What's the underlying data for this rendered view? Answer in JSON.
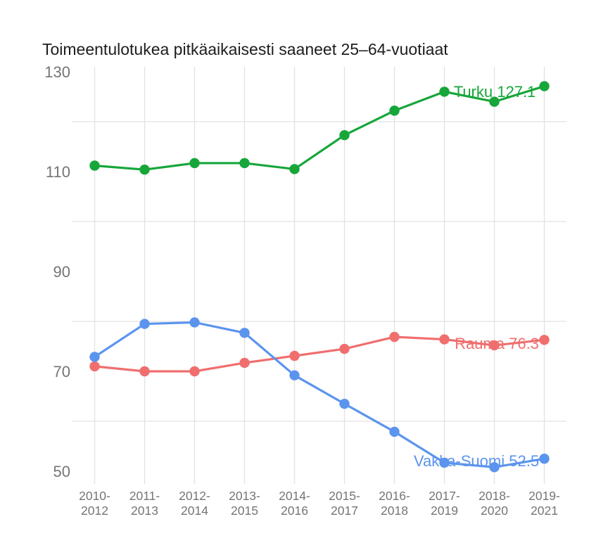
{
  "title": "Toimeentulotukea pitkäaikaisesti saaneet 25–64-vuotiaat",
  "colors": {
    "background": "#ffffff",
    "title_text": "#1d1d1d",
    "axis_text": "#757575",
    "gridline": "#e2e2e2",
    "turku_green": "#17a63a",
    "rauma_red": "#f06e6e",
    "vakka_suomi_blue": "#5b94ee"
  },
  "chart_data": {
    "type": "line",
    "title": "Toimeentulotukea pitkäaikaisesti saaneet 25–64-vuotiaat",
    "xlabel": "",
    "ylabel": "",
    "grid": true,
    "legend_position": "end-of-line-labels",
    "ylim": [
      47,
      131
    ],
    "y_tick_labels": [
      130,
      110,
      90,
      70,
      50
    ],
    "y_gridline_values": [
      120,
      100,
      80,
      60
    ],
    "categories": [
      [
        "2010-",
        "2012"
      ],
      [
        "2011-",
        "2013"
      ],
      [
        "2012-",
        "2014"
      ],
      [
        "2013-",
        "2015"
      ],
      [
        "2014-",
        "2016"
      ],
      [
        "2015-",
        "2017"
      ],
      [
        "2016-",
        "2018"
      ],
      [
        "2017-",
        "2019"
      ],
      [
        "2018-",
        "2020"
      ],
      [
        "2019-",
        "2021"
      ]
    ],
    "series": [
      {
        "name": "Turku",
        "color": "#17a63a",
        "end_label": "Turku 127.1",
        "last_value": 127.1,
        "values": [
          111.2,
          110.4,
          111.7,
          111.7,
          110.5,
          117.3,
          122.2,
          126.0,
          124.0,
          127.1
        ]
      },
      {
        "name": "Rauma",
        "color": "#f06e6e",
        "end_label": "Rauma 76.3",
        "last_value": 76.3,
        "values": [
          71.0,
          70.0,
          70.0,
          71.7,
          73.1,
          74.5,
          76.9,
          76.4,
          75.2,
          76.3
        ]
      },
      {
        "name": "Vakka-Suomi",
        "color": "#5b94ee",
        "end_label": "Vakka-Suomi 52.5",
        "last_value": 52.5,
        "values": [
          72.9,
          79.5,
          79.8,
          77.7,
          69.2,
          63.5,
          57.9,
          51.7,
          50.8,
          52.5
        ]
      }
    ]
  }
}
